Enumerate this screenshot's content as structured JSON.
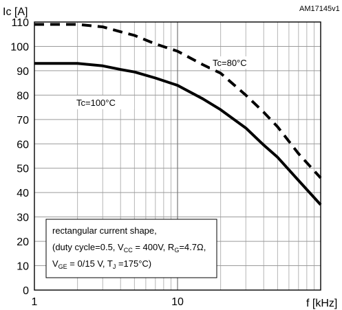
{
  "chart_data": {
    "type": "line",
    "reference_code": "AM17145v1",
    "xlabel": "f [kHz]",
    "ylabel": "Ic [A]",
    "x_scale": "log",
    "xlim": [
      1,
      100
    ],
    "ylim": [
      0,
      110
    ],
    "x_ticks": [
      1,
      10
    ],
    "y_ticks": [
      0,
      10,
      20,
      30,
      40,
      50,
      60,
      70,
      80,
      90,
      100,
      110
    ],
    "grid": true,
    "series": [
      {
        "name": "Tc=80°C",
        "style": "dashed",
        "color": "#000000",
        "x": [
          1,
          1.5,
          2,
          3,
          4,
          5,
          7,
          10,
          15,
          20,
          30,
          40,
          50,
          70,
          100
        ],
        "y": [
          109,
          109,
          109,
          108,
          106,
          104.5,
          101,
          98,
          92.5,
          89,
          80,
          73,
          67,
          56,
          46
        ]
      },
      {
        "name": "Tc=100°C",
        "style": "solid",
        "color": "#000000",
        "x": [
          1,
          1.5,
          2,
          3,
          4,
          5,
          7,
          10,
          15,
          20,
          30,
          40,
          50,
          70,
          100
        ],
        "y": [
          93,
          93,
          93,
          92,
          90.5,
          89.5,
          87,
          84,
          78.5,
          74,
          66.5,
          59.5,
          54.5,
          45,
          35
        ]
      }
    ],
    "annotation": {
      "line1": "rectangular current shape,",
      "line2": {
        "t1": "(duty cycle=0.5, V",
        "s1": "CC",
        "t2": " = 400V, R",
        "s2": "G",
        "t3": "=4.7Ω,"
      },
      "line3": {
        "t1": "V",
        "s1": "GE",
        "t2": " = 0/15 V, T",
        "s2": "J",
        "t3": " =175°C)"
      }
    }
  }
}
